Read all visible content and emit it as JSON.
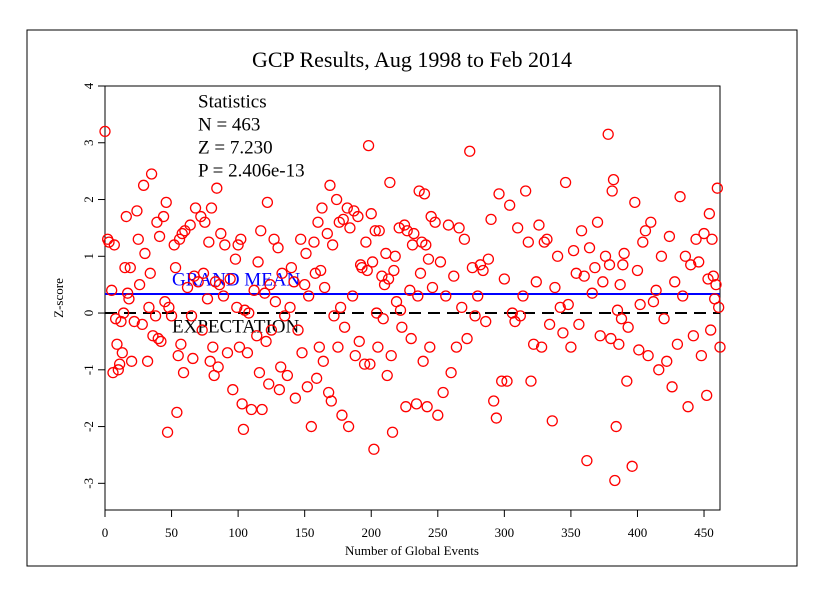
{
  "chart_data": {
    "type": "scatter",
    "title": "GCP Results, Aug 1998 to Feb 2014",
    "stats": [
      "Statistics",
      "N = 463",
      "Z = 7.230",
      "P = 2.406e-13"
    ],
    "x_label": "Number of Global Events",
    "y_label": "Z-score",
    "grand_mean_label": "GRAND MEAN",
    "expectation_label": "EXPECTATION",
    "grand_mean": 0.336,
    "expectation": 0,
    "color": "#ff0000",
    "mean_color": "#0000ff",
    "xlim": [
      0,
      462
    ],
    "ylim": [
      -3.47,
      4
    ],
    "xticks": [
      0,
      50,
      100,
      150,
      200,
      250,
      300,
      350,
      400,
      450
    ],
    "yticks": [
      -3,
      -2,
      -1,
      0,
      1,
      2,
      3,
      4
    ],
    "x": [
      0,
      2,
      3,
      5,
      6,
      7,
      8,
      9,
      10,
      11,
      12,
      13,
      14,
      15,
      16,
      17,
      18,
      19,
      20,
      22,
      24,
      25,
      26,
      28,
      29,
      30,
      32,
      33,
      34,
      35,
      36,
      38,
      39,
      40,
      41,
      42,
      44,
      45,
      46,
      47,
      48,
      50,
      52,
      53,
      54,
      55,
      56,
      57,
      58,
      59,
      60,
      62,
      64,
      65,
      66,
      67,
      68,
      70,
      72,
      73,
      74,
      75,
      77,
      78,
      79,
      80,
      81,
      82,
      83,
      84,
      85,
      86,
      87,
      89,
      90,
      92,
      94,
      96,
      98,
      99,
      100,
      101,
      102,
      103,
      104,
      105,
      107,
      108,
      110,
      112,
      114,
      115,
      116,
      117,
      118,
      120,
      121,
      122,
      123,
      124,
      125,
      127,
      128,
      130,
      131,
      132,
      133,
      135,
      137,
      139,
      140,
      142,
      143,
      145,
      147,
      148,
      150,
      151,
      152,
      153,
      155,
      157,
      158,
      159,
      160,
      161,
      162,
      163,
      164,
      165,
      167,
      168,
      169,
      170,
      171,
      172,
      174,
      175,
      176,
      177,
      178,
      179,
      180,
      182,
      183,
      184,
      186,
      187,
      188,
      190,
      191,
      192,
      193,
      195,
      196,
      197,
      198,
      199,
      200,
      201,
      202,
      203,
      204,
      205,
      206,
      208,
      209,
      210,
      211,
      212,
      213,
      214,
      215,
      216,
      217,
      218,
      219,
      221,
      222,
      223,
      225,
      226,
      227,
      229,
      230,
      231,
      232,
      234,
      235,
      236,
      237,
      238,
      239,
      240,
      241,
      242,
      243,
      244,
      245,
      246,
      248,
      250,
      252,
      254,
      256,
      258,
      260,
      262,
      264,
      266,
      268,
      270,
      272,
      274,
      276,
      278,
      280,
      282,
      284,
      286,
      288,
      290,
      292,
      294,
      296,
      298,
      300,
      302,
      304,
      306,
      308,
      310,
      312,
      314,
      316,
      318,
      320,
      322,
      324,
      326,
      328,
      330,
      332,
      334,
      336,
      338,
      340,
      342,
      344,
      346,
      348,
      350,
      352,
      354,
      356,
      358,
      360,
      362,
      364,
      366,
      368,
      370,
      372,
      374,
      376,
      378,
      379,
      380,
      381,
      382,
      383,
      384,
      385,
      386,
      387,
      388,
      389,
      390,
      392,
      393,
      396,
      398,
      400,
      401,
      402,
      404,
      406,
      408,
      410,
      412,
      414,
      416,
      418,
      420,
      422,
      424,
      426,
      428,
      430,
      432,
      434,
      436,
      438,
      440,
      442,
      444,
      446,
      448,
      450,
      452,
      453,
      454,
      455,
      456,
      457,
      458,
      459,
      460,
      461,
      462
    ],
    "values": [
      3.2,
      1.3,
      1.25,
      0.4,
      -1.05,
      1.2,
      -0.1,
      -0.55,
      -1.0,
      -0.9,
      -0.15,
      -0.7,
      0,
      0.8,
      1.7,
      0.35,
      0.25,
      0.8,
      -0.85,
      -0.15,
      1.8,
      1.3,
      0.5,
      -0.2,
      2.25,
      1.05,
      -0.85,
      0.1,
      0.7,
      2.45,
      -0.4,
      -0.05,
      1.6,
      -0.45,
      1.35,
      -0.5,
      1.7,
      0.2,
      1.95,
      -2.1,
      0.1,
      -0.05,
      1.2,
      0.8,
      -1.75,
      -0.75,
      1.3,
      -0.55,
      1.4,
      -1.05,
      1.45,
      0.45,
      1.55,
      -0.05,
      -0.8,
      0.65,
      1.85,
      0.55,
      1.7,
      -0.3,
      0.7,
      1.6,
      0.25,
      1.25,
      -0.85,
      1.85,
      -0.6,
      -1.1,
      0.55,
      2.2,
      -0.95,
      0.5,
      1.4,
      0.3,
      1.2,
      -0.7,
      0.6,
      -1.35,
      0.95,
      0.1,
      1.2,
      -0.6,
      1.3,
      -1.6,
      -2.05,
      0.05,
      -0.7,
      0,
      -1.7,
      0.4,
      -0.4,
      0.9,
      -1.05,
      1.45,
      -1.7,
      0.35,
      -0.5,
      1.95,
      -1.25,
      0.5,
      -0.3,
      1.3,
      0.2,
      1.15,
      -1.35,
      -0.95,
      0.7,
      -0.05,
      -1.1,
      0.1,
      0.8,
      0.55,
      -1.5,
      -0.3,
      1.3,
      -0.7,
      0.5,
      1.05,
      -1.3,
      0.3,
      -2,
      1.25,
      0.7,
      -1.15,
      1.6,
      -0.6,
      0.75,
      1.85,
      -0.85,
      0.45,
      1.4,
      -1.4,
      2.25,
      -1.55,
      1.2,
      -0.05,
      2,
      -0.6,
      1.6,
      0.1,
      -1.8,
      1.65,
      -0.25,
      1.85,
      -2,
      1.5,
      0.3,
      1.8,
      -0.75,
      1.7,
      -0.5,
      0.85,
      0.8,
      -0.9,
      1.25,
      0.75,
      2.95,
      -0.9,
      1.75,
      0.9,
      -2.4,
      1.45,
      0,
      -0.6,
      1.45,
      0.65,
      -0.1,
      0.5,
      1.05,
      -1.1,
      0.6,
      2.3,
      -0.75,
      -2.1,
      0.75,
      1,
      0.2,
      1.5,
      0.05,
      -0.25,
      1.55,
      -1.65,
      1.45,
      0.4,
      -0.45,
      1.2,
      1.4,
      -1.6,
      0.3,
      2.15,
      0.7,
      1.25,
      -0.85,
      2.1,
      1.2,
      -1.65,
      0.95,
      -0.6,
      1.7,
      0.45,
      1.6,
      -1.8,
      0.9,
      -1.4,
      0.3,
      1.55,
      -1.05,
      0.65,
      -0.6,
      1.5,
      0.1,
      1.3,
      -0.45,
      2.85,
      0.8,
      -0.05,
      0.3,
      0.85,
      0.75,
      -0.15,
      0.95,
      1.65,
      -1.55,
      -1.85,
      2.1,
      -1.2,
      0.6,
      -1.2,
      1.9,
      0,
      -0.15,
      1.5,
      -0.05,
      0.3,
      2.15,
      1.25,
      -1.2,
      -0.55,
      0.55,
      1.55,
      -0.6,
      1.25,
      1.3,
      -0.2,
      -1.9,
      0.45,
      1,
      0.1,
      -0.35,
      2.3,
      0.15,
      -0.6,
      1.1,
      0.7,
      -0.2,
      1.45,
      0.65,
      -2.6,
      1.15,
      0.35,
      0.8,
      1.6,
      -0.4,
      0.55,
      1,
      3.15,
      0.85,
      -0.45,
      2.15,
      2.35,
      -2.95,
      -2,
      0.05,
      -0.55,
      0.5,
      -0.1,
      0.85,
      1.05,
      -1.2,
      -0.25,
      -2.7,
      1.95,
      0.75,
      -0.65,
      0.15,
      1.25,
      1.45,
      -0.75,
      1.6,
      0.2,
      0.4,
      -1,
      1,
      -0.1,
      -0.85,
      1.35,
      -1.3,
      0.55,
      -0.55,
      2.05,
      0.3,
      1,
      -1.65,
      0.85,
      -0.4,
      1.3,
      0.9,
      -0.75,
      1.4,
      -1.45,
      0.6,
      1.75,
      -0.3,
      1.3,
      0.65,
      0.25,
      0.5,
      2.2,
      0.1,
      -0.6
    ]
  }
}
